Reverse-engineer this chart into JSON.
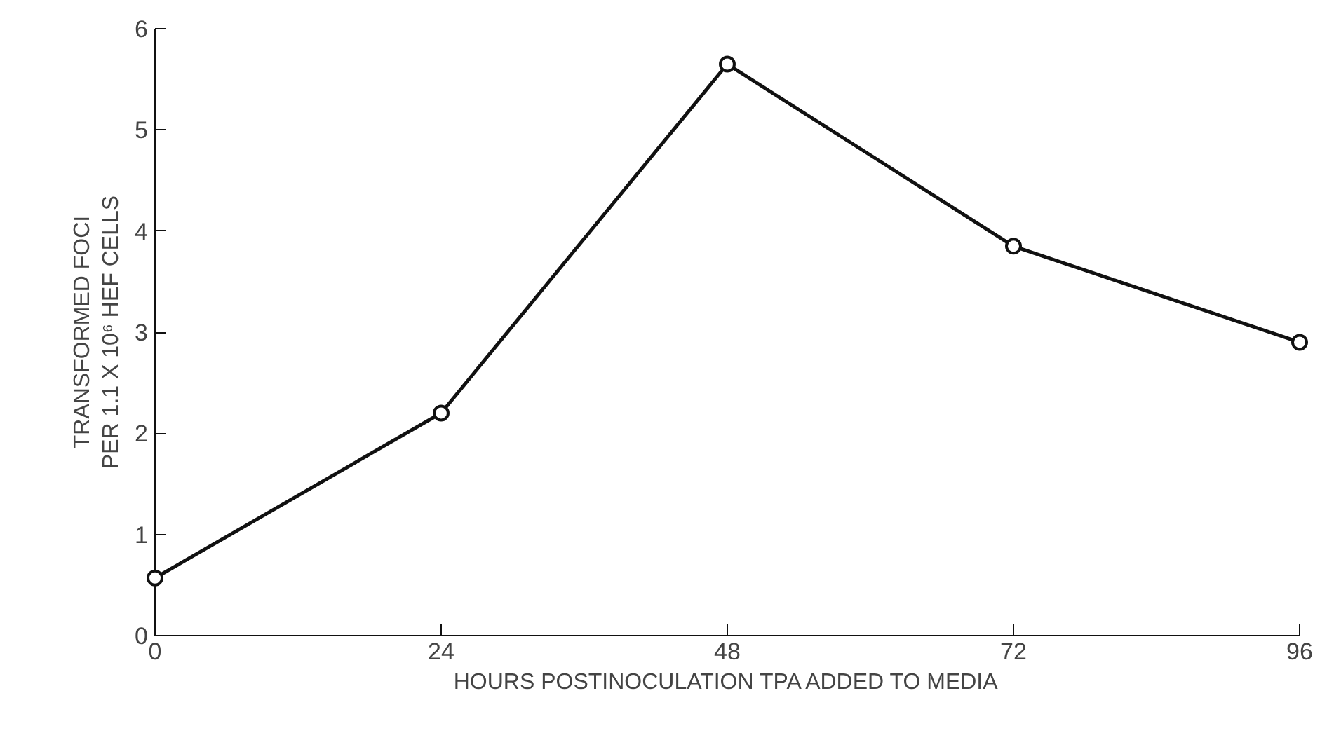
{
  "chart_data": {
    "type": "line",
    "xlabel": "HOURS POSTINOCULATION TPA ADDED TO MEDIA",
    "ylabel": "TRANSFORMED FOCI\nPER 1.1 X 10⁶ HEF CELLS",
    "x": [
      0,
      24,
      48,
      72,
      96
    ],
    "series": [
      {
        "color": "#111111",
        "values": [
          0.57,
          2.2,
          5.65,
          3.85,
          2.9
        ]
      }
    ],
    "xlim": [
      0,
      96
    ],
    "ylim": [
      0,
      6
    ],
    "xticks": [
      0,
      24,
      48,
      72,
      96
    ],
    "yticks": [
      0,
      1,
      2,
      3,
      4,
      5,
      6
    ],
    "marker": "circle",
    "line_style": "solid"
  }
}
